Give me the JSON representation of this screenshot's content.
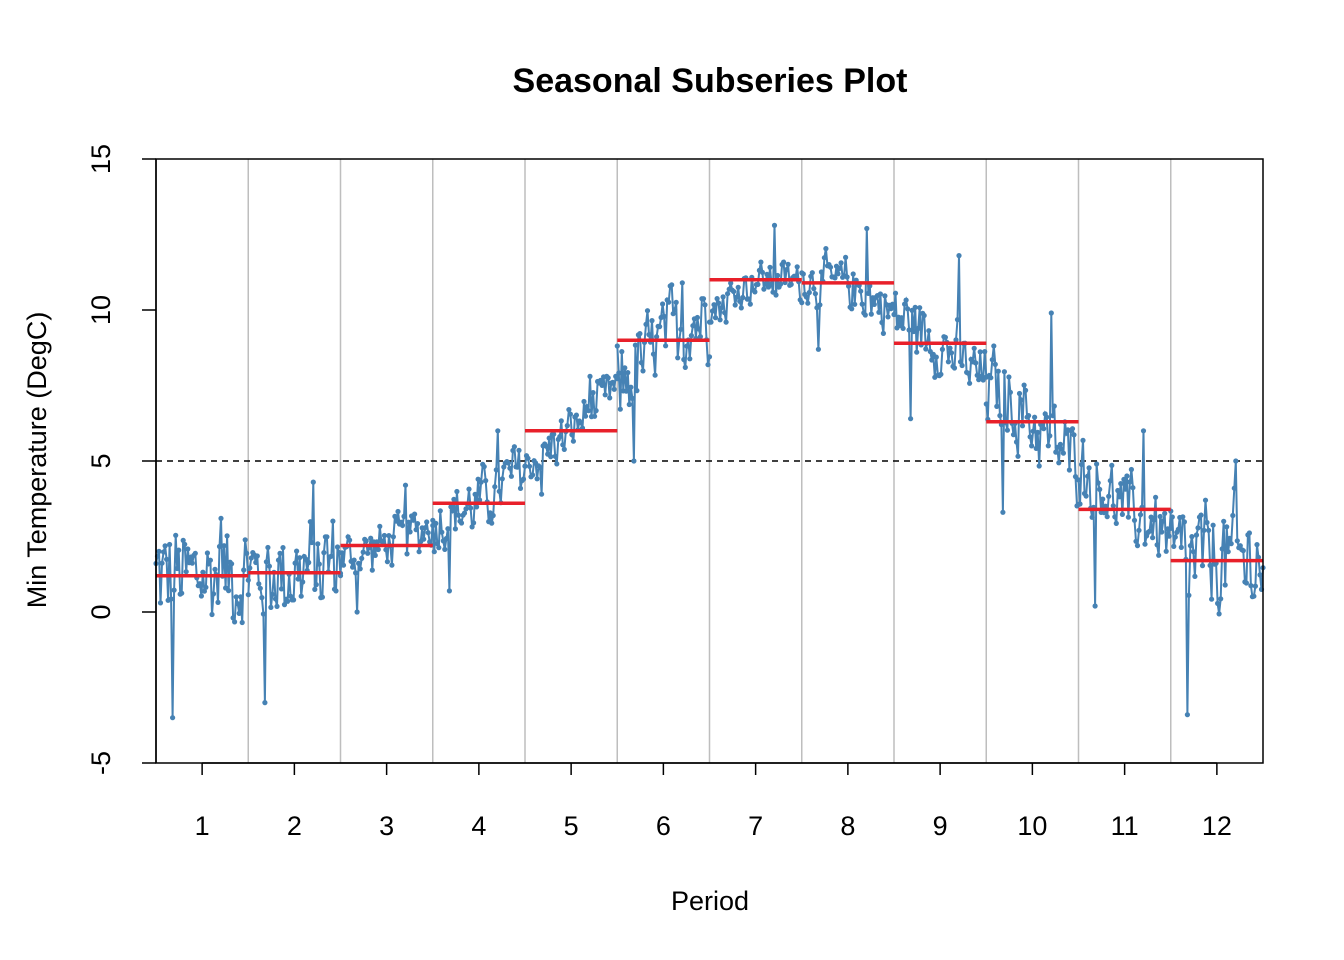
{
  "chart_data": {
    "type": "line",
    "title": "Seasonal Subseries Plot",
    "xlabel": "Period",
    "ylabel": "Min Temperature (DegC)",
    "xlim": [
      0.5,
      12.5
    ],
    "ylim": [
      -5,
      15
    ],
    "categories": [
      "1",
      "2",
      "3",
      "4",
      "5",
      "6",
      "7",
      "8",
      "9",
      "10",
      "11",
      "12"
    ],
    "y_ticks": [
      "-5",
      "0",
      "5",
      "10",
      "15"
    ],
    "reference_line": 5,
    "series_color": "#4682B4",
    "mean_color": "#E8202A",
    "grid_color": "#BEBEBE",
    "means": [
      1.2,
      1.3,
      2.2,
      3.6,
      6.0,
      9.0,
      11.0,
      10.9,
      8.9,
      6.3,
      3.4,
      1.7
    ],
    "ranges": [
      [
        -3.5,
        3.1
      ],
      [
        -3.0,
        4.3
      ],
      [
        0.0,
        4.2
      ],
      [
        0.7,
        6.0
      ],
      [
        3.9,
        7.8
      ],
      [
        5.0,
        10.9
      ],
      [
        9.6,
        12.8
      ],
      [
        8.7,
        12.7
      ],
      [
        6.4,
        11.8
      ],
      [
        3.3,
        9.9
      ],
      [
        0.2,
        6.0
      ],
      [
        -3.4,
        5.0
      ]
    ]
  }
}
